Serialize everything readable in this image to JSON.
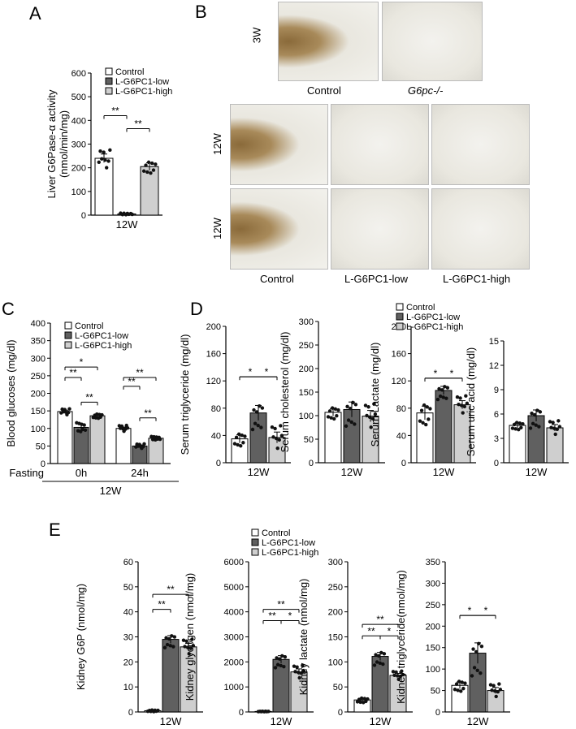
{
  "panel_letters": {
    "a": "A",
    "b": "B",
    "c": "C",
    "d": "D",
    "e": "E"
  },
  "colors": {
    "control": "#ffffff",
    "low": "#606060",
    "high": "#cfcfcf",
    "stain": "#8a6a3a",
    "tissue": "#e9e7df"
  },
  "legend": [
    "Control",
    "L-G6PC1-low",
    "L-G6PC1-high"
  ],
  "panel_b": {
    "row_3w": "3W",
    "row_12w_1": "12W",
    "row_12w_2": "12W",
    "col_control": "Control",
    "col_ko": "G6pc-/-",
    "col_control_2": "Control",
    "col_low": "L-G6PC1-low",
    "col_high": "L-G6PC1-high"
  },
  "chart_data": [
    {
      "id": "A",
      "type": "bar",
      "ylabel": "Liver G6Pase-α activity\n(nmol/min/mg)",
      "ylim": [
        0,
        600
      ],
      "yticks": [
        0,
        100,
        200,
        300,
        400,
        500,
        600
      ],
      "categories": [
        "12W"
      ],
      "series": [
        {
          "name": "Control",
          "values": [
            240
          ],
          "err": [
            18
          ]
        },
        {
          "name": "L-G6PC1-low",
          "values": [
            5
          ],
          "err": [
            2
          ]
        },
        {
          "name": "L-G6PC1-high",
          "values": [
            205
          ],
          "err": [
            16
          ]
        }
      ],
      "sig": [
        {
          "a": 0,
          "b": 1,
          "label": "**",
          "y": 420
        },
        {
          "a": 1,
          "b": 2,
          "label": "**",
          "y": 365
        }
      ]
    },
    {
      "id": "C",
      "type": "bar",
      "ylabel": "Blood glucoses (mg/dl)",
      "ylim": [
        0,
        400
      ],
      "yticks": [
        0,
        50,
        100,
        150,
        200,
        250,
        300,
        350,
        400
      ],
      "categories": [
        "0h",
        "24h"
      ],
      "xprefix": "Fasting",
      "xgroup": "12W",
      "series": [
        {
          "name": "Control",
          "values": [
            148,
            100
          ],
          "err": [
            4,
            4
          ]
        },
        {
          "name": "L-G6PC1-low",
          "values": [
            103,
            50
          ],
          "err": [
            8,
            3
          ]
        },
        {
          "name": "L-G6PC1-high",
          "values": [
            136,
            72
          ],
          "err": [
            4,
            3
          ]
        }
      ],
      "sig": [
        {
          "g": 0,
          "a": 0,
          "b": 1,
          "label": "**",
          "y": 245
        },
        {
          "g": 0,
          "a": 0,
          "b": 2,
          "label": "*",
          "y": 275
        },
        {
          "g": 0,
          "a": 1,
          "b": 2,
          "label": "**",
          "y": 175
        },
        {
          "g": 1,
          "a": 0,
          "b": 1,
          "label": "**",
          "y": 220
        },
        {
          "g": 1,
          "a": 0,
          "b": 2,
          "label": "**",
          "y": 245
        },
        {
          "g": 1,
          "a": 1,
          "b": 2,
          "label": "**",
          "y": 130
        }
      ]
    },
    {
      "id": "D1",
      "type": "bar",
      "ylabel": "Serum triglyceride (mg/dl)",
      "ylim": [
        0,
        200
      ],
      "yticks": [
        0,
        40,
        80,
        120,
        160,
        200
      ],
      "categories": [
        "12W"
      ],
      "series": [
        {
          "name": "Control",
          "values": [
            35
          ],
          "err": [
            6
          ]
        },
        {
          "name": "L-G6PC1-low",
          "values": [
            73
          ],
          "err": [
            11
          ]
        },
        {
          "name": "L-G6PC1-high",
          "values": [
            37
          ],
          "err": [
            8
          ]
        }
      ],
      "sig": [
        {
          "a": 0,
          "b": 2,
          "label": "*",
          "y": 126,
          "pos": "left"
        },
        {
          "a": 0,
          "b": 2,
          "label": "*",
          "y": 126,
          "pos": "right"
        }
      ]
    },
    {
      "id": "D2",
      "type": "bar",
      "ylabel": "Serum cholesterol (mg/dl)",
      "ylim": [
        0,
        300
      ],
      "yticks": [
        0,
        50,
        100,
        150,
        200,
        250,
        300
      ],
      "categories": [
        "12W"
      ],
      "series": [
        {
          "name": "Control",
          "values": [
            107
          ],
          "err": [
            8
          ]
        },
        {
          "name": "L-G6PC1-low",
          "values": [
            113
          ],
          "err": [
            16
          ]
        },
        {
          "name": "L-G6PC1-high",
          "values": [
            99
          ],
          "err": [
            12
          ]
        }
      ],
      "sig": []
    },
    {
      "id": "D3",
      "type": "bar",
      "ylabel": "Serum Lactate (mg/dl)",
      "ylim": [
        0,
        200
      ],
      "yticks": [
        0,
        40,
        80,
        120,
        160,
        200
      ],
      "categories": [
        "12W"
      ],
      "series": [
        {
          "name": "Control",
          "values": [
            73
          ],
          "err": [
            10
          ]
        },
        {
          "name": "L-G6PC1-low",
          "values": [
            106
          ],
          "err": [
            6
          ]
        },
        {
          "name": "L-G6PC1-high",
          "values": [
            85
          ],
          "err": [
            6
          ]
        }
      ],
      "sig": [
        {
          "a": 0,
          "b": 2,
          "label": "*",
          "y": 124,
          "pos": "left"
        },
        {
          "a": 0,
          "b": 2,
          "label": "*",
          "y": 124,
          "pos": "right"
        }
      ]
    },
    {
      "id": "D4",
      "type": "bar",
      "ylabel": "Serum uric acid (mg/dl)",
      "ylim": [
        0,
        15
      ],
      "yticks": [
        0,
        3,
        6,
        9,
        12,
        15
      ],
      "categories": [
        "12W"
      ],
      "series": [
        {
          "name": "Control",
          "values": [
            4.6
          ],
          "err": [
            0.3
          ]
        },
        {
          "name": "L-G6PC1-low",
          "values": [
            5.8
          ],
          "err": [
            0.7
          ]
        },
        {
          "name": "L-G6PC1-high",
          "values": [
            4.3
          ],
          "err": [
            0.4
          ]
        }
      ],
      "sig": []
    },
    {
      "id": "E1",
      "type": "bar",
      "ylabel": "Kidney G6P (nmol/mg)",
      "ylim": [
        0,
        60
      ],
      "yticks": [
        0,
        10,
        20,
        30,
        40,
        50,
        60
      ],
      "categories": [
        "12W"
      ],
      "series": [
        {
          "name": "Control",
          "values": [
            0.5
          ],
          "err": [
            0.2
          ]
        },
        {
          "name": "L-G6PC1-low",
          "values": [
            29
          ],
          "err": [
            1.5
          ]
        },
        {
          "name": "L-G6PC1-high",
          "values": [
            26
          ],
          "err": [
            1.4
          ]
        }
      ],
      "sig": [
        {
          "a": 0,
          "b": 1,
          "label": "**",
          "y": 41
        },
        {
          "a": 0,
          "b": 2,
          "label": "**",
          "y": 47
        }
      ]
    },
    {
      "id": "E2",
      "type": "bar",
      "ylabel": "Kidney glycogen (nmol/mg)",
      "ylim": [
        0,
        6000
      ],
      "yticks": [
        0,
        1000,
        2000,
        3000,
        4000,
        5000,
        6000
      ],
      "categories": [
        "12W"
      ],
      "series": [
        {
          "name": "Control",
          "values": [
            20
          ],
          "err": [
            5
          ]
        },
        {
          "name": "L-G6PC1-low",
          "values": [
            2100
          ],
          "err": [
            150
          ]
        },
        {
          "name": "L-G6PC1-high",
          "values": [
            1600
          ],
          "err": [
            120
          ]
        }
      ],
      "sig": [
        {
          "a": 0,
          "b": 2,
          "label": "**",
          "y": 4100
        },
        {
          "a": 0,
          "b": 1,
          "label": "**",
          "y": 3650
        },
        {
          "a": 1,
          "b": 2,
          "label": "*",
          "y": 3650
        }
      ]
    },
    {
      "id": "E3",
      "type": "bar",
      "ylabel": "Kidney lactate (nmol/mg)",
      "ylim": [
        0,
        300
      ],
      "yticks": [
        0,
        50,
        100,
        150,
        200,
        250,
        300
      ],
      "categories": [
        "12W"
      ],
      "series": [
        {
          "name": "Control",
          "values": [
            24
          ],
          "err": [
            3
          ]
        },
        {
          "name": "L-G6PC1-low",
          "values": [
            111
          ],
          "err": [
            8
          ]
        },
        {
          "name": "L-G6PC1-high",
          "values": [
            73
          ],
          "err": [
            4
          ]
        }
      ],
      "sig": [
        {
          "a": 0,
          "b": 2,
          "label": "**",
          "y": 175
        },
        {
          "a": 0,
          "b": 1,
          "label": "**",
          "y": 152
        },
        {
          "a": 1,
          "b": 2,
          "label": "*",
          "y": 152
        }
      ]
    },
    {
      "id": "E4",
      "type": "bar",
      "ylabel": "Kidney triglyceride(nmol/mg)",
      "ylim": [
        0,
        350
      ],
      "yticks": [
        0,
        50,
        100,
        150,
        200,
        250,
        300,
        350
      ],
      "categories": [
        "12W"
      ],
      "series": [
        {
          "name": "Control",
          "values": [
            62
          ],
          "err": [
            8
          ]
        },
        {
          "name": "L-G6PC1-low",
          "values": [
            137
          ],
          "err": [
            24
          ]
        },
        {
          "name": "L-G6PC1-high",
          "values": [
            50
          ],
          "err": [
            7
          ]
        }
      ],
      "sig": [
        {
          "a": 0,
          "b": 2,
          "label": "*",
          "y": 225,
          "pos": "left"
        },
        {
          "a": 0,
          "b": 2,
          "label": "*",
          "y": 225,
          "pos": "right"
        }
      ]
    }
  ]
}
